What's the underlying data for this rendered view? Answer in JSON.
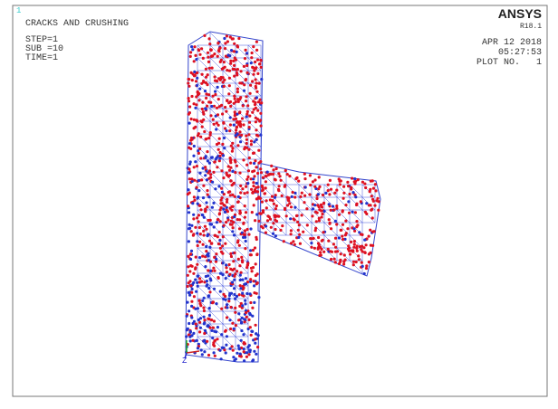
{
  "window_number": "1",
  "title": "CRACKS AND CRUSHING",
  "step": "STEP=1",
  "sub": "SUB =10",
  "time": "TIME=1",
  "brand": "ANSYS",
  "version": "R18.1",
  "date": "APR 12 2018",
  "clock": "05:27:53",
  "plot_no": "PLOT NO.   1",
  "triad_label": "Z"
}
